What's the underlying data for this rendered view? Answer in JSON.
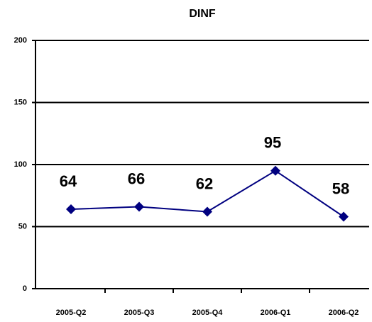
{
  "chart_data": {
    "type": "line",
    "title": "DINF",
    "categories": [
      "2005-Q2",
      "2005-Q3",
      "2005-Q4",
      "2006-Q1",
      "2006-Q2"
    ],
    "series": [
      {
        "name": "DINF",
        "color": "#000080",
        "values": [
          64,
          66,
          62,
          95,
          58
        ]
      }
    ],
    "ylim": [
      0,
      200
    ],
    "yticks": [
      0,
      50,
      100,
      150,
      200
    ],
    "grid": true
  }
}
